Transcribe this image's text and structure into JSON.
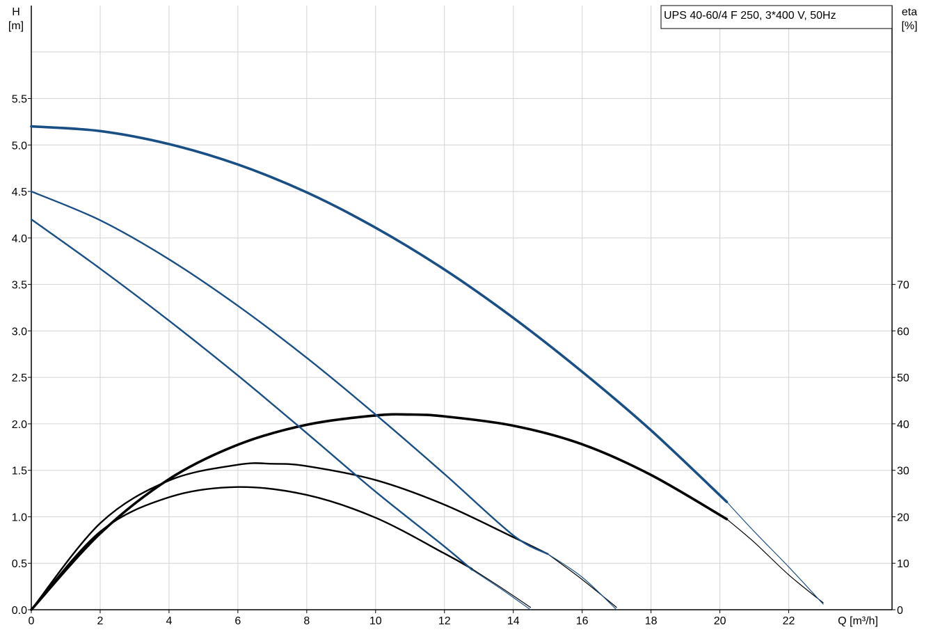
{
  "chart_data": {
    "type": "line",
    "title": "UPS 40-60/4 F 250, 3*400 V, 50Hz",
    "x_axis": {
      "label": "Q [m³/h]",
      "range": [
        0,
        25
      ],
      "ticks": [
        0,
        2,
        4,
        6,
        8,
        10,
        12,
        14,
        16,
        18,
        20,
        22
      ],
      "tick_labels": [
        "0",
        "2",
        "4",
        "6",
        "8",
        "10",
        "12",
        "14",
        "16",
        "18",
        "20",
        "22"
      ]
    },
    "y_axis_left": {
      "label_line1": "H",
      "label_line2": "[m]",
      "range": [
        0,
        6.5
      ],
      "gridlines": [
        0,
        0.5,
        1,
        1.5,
        2,
        2.5,
        3,
        3.5,
        4,
        4.5,
        5,
        5.5,
        6
      ],
      "ticks": [
        0,
        0.5,
        1,
        1.5,
        2,
        2.5,
        3,
        3.5,
        4,
        4.5,
        5,
        5.5
      ],
      "tick_labels": [
        "0.0",
        "0.5",
        "1.0",
        "1.5",
        "2.0",
        "2.5",
        "3.0",
        "3.5",
        "4.0",
        "4.5",
        "5.0",
        "5.5"
      ]
    },
    "y_axis_right": {
      "label_line1": "eta",
      "label_line2": "[%]",
      "range": [
        0,
        130
      ],
      "ticks": [
        0,
        10,
        20,
        30,
        40,
        50,
        60,
        70
      ],
      "tick_labels": [
        "0",
        "10",
        "20",
        "30",
        "40",
        "50",
        "60",
        "70"
      ]
    },
    "grid": true,
    "head_series": [
      {
        "axis": "left",
        "color": "#1a4f86",
        "thickness": "thick",
        "x": [
          0,
          2,
          4,
          6,
          8,
          10,
          12,
          14,
          16,
          18,
          20.2
        ],
        "y": [
          5.2,
          5.15,
          5.01,
          4.79,
          4.49,
          4.11,
          3.66,
          3.14,
          2.56,
          1.93,
          1.16
        ],
        "extension": {
          "x": [
            20.2,
            21,
            22,
            23
          ],
          "y": [
            1.16,
            0.84,
            0.46,
            0.06
          ]
        }
      },
      {
        "axis": "left",
        "color": "#1a4f86",
        "thickness": "medium",
        "x": [
          0,
          2,
          4,
          6,
          8,
          10,
          12,
          14,
          15
        ],
        "y": [
          4.5,
          4.19,
          3.77,
          3.27,
          2.71,
          2.1,
          1.46,
          0.8,
          0.6
        ],
        "extension": {
          "x": [
            15,
            16,
            17
          ],
          "y": [
            0.6,
            0.35,
            0.0
          ]
        }
      },
      {
        "axis": "left",
        "color": "#1a4f86",
        "thickness": "medium",
        "x": [
          0,
          2,
          4,
          6,
          8,
          10,
          12,
          12.8
        ],
        "y": [
          4.2,
          3.67,
          3.11,
          2.52,
          1.9,
          1.27,
          0.68,
          0.43
        ],
        "extension": {
          "x": [
            12.8,
            13.7,
            14.5
          ],
          "y": [
            0.43,
            0.21,
            0.0
          ]
        }
      }
    ],
    "efficiency_series": [
      {
        "axis": "right",
        "color": "#000000",
        "thickness": "thick",
        "x": [
          0,
          2,
          4,
          6,
          8,
          10,
          11,
          12,
          14,
          16,
          18,
          20.2
        ],
        "y": [
          0,
          16.4,
          28.1,
          35.5,
          39.8,
          41.8,
          42.0,
          41.6,
          39.6,
          35.6,
          29.0,
          19.5
        ],
        "extension": {
          "x": [
            20.2,
            21,
            22,
            23
          ],
          "y": [
            19.5,
            14.5,
            7.5,
            1.5
          ]
        }
      },
      {
        "axis": "right",
        "color": "#000000",
        "thickness": "medium",
        "x": [
          0,
          2,
          4,
          6,
          7,
          8,
          10,
          12,
          14,
          15
        ],
        "y": [
          0,
          18.6,
          27.8,
          31.2,
          31.4,
          30.9,
          27.9,
          22.6,
          15.6,
          12.0
        ],
        "extension": {
          "x": [
            15,
            16,
            17
          ],
          "y": [
            12.0,
            6.5,
            0.5
          ]
        }
      },
      {
        "axis": "right",
        "color": "#000000",
        "thickness": "medium",
        "x": [
          0,
          2,
          4,
          6,
          8,
          10,
          12,
          12.8
        ],
        "y": [
          0,
          16.8,
          24.2,
          26.4,
          24.7,
          19.8,
          12.1,
          8.8
        ],
        "extension": {
          "x": [
            12.8,
            13.7,
            14.5
          ],
          "y": [
            8.8,
            4.5,
            0.5
          ]
        }
      }
    ]
  }
}
